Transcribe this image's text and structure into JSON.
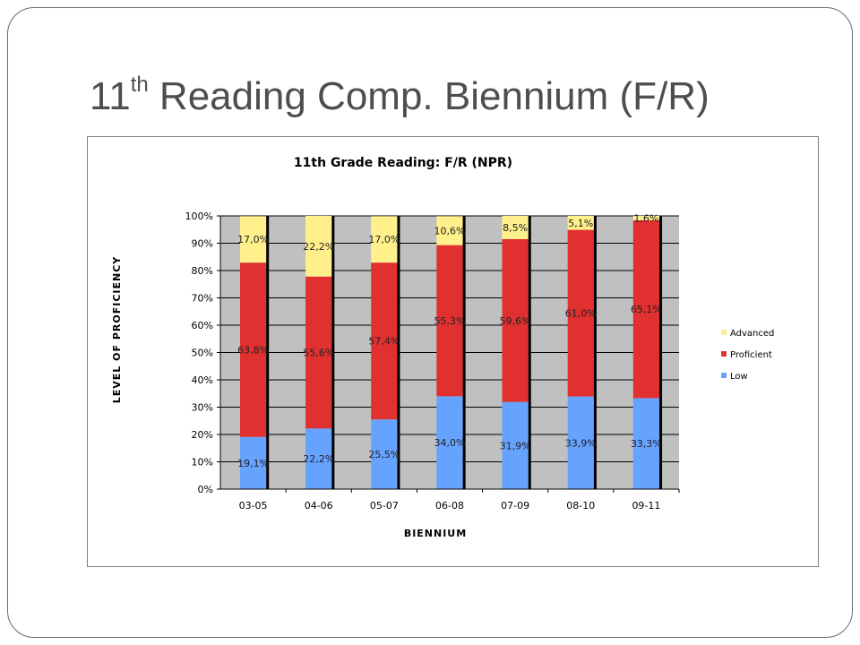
{
  "slide": {
    "title_main": "11",
    "title_sup": "th",
    "title_rest": " Reading Comp. Biennium (F/R)"
  },
  "chart_data": {
    "type": "bar",
    "stacked": true,
    "title": "11th Grade Reading:  F/R (NPR)",
    "xlabel": "BIENNIUM",
    "ylabel": "LEVEL OF PROFICIENCY",
    "categories": [
      "03-05",
      "04-06",
      "05-07",
      "06-08",
      "07-09",
      "08-10",
      "09-11"
    ],
    "ylim": [
      0,
      100
    ],
    "y_ticks": [
      "0%",
      "10%",
      "20%",
      "30%",
      "40%",
      "50%",
      "60%",
      "70%",
      "80%",
      "90%",
      "100%"
    ],
    "grid": true,
    "legend_position": "right",
    "series": [
      {
        "name": "Low",
        "color": "#66a3ff",
        "values": [
          19.1,
          22.2,
          25.5,
          34.0,
          31.9,
          33.9,
          33.3
        ],
        "labels": [
          "19,1%",
          "22,2%",
          "25,5%",
          "34,0%",
          "31,9%",
          "33,9%",
          "33,3%"
        ]
      },
      {
        "name": "Proficient",
        "color": "#e03030",
        "values": [
          63.8,
          55.6,
          57.4,
          55.3,
          59.6,
          61.0,
          65.1
        ],
        "labels": [
          "63,8%",
          "55,6%",
          "57,4%",
          "55,3%",
          "59,6%",
          "61,0%",
          "65,1%"
        ]
      },
      {
        "name": "Advanced",
        "color": "#fff08c",
        "values": [
          17.0,
          22.2,
          17.0,
          10.6,
          8.5,
          5.1,
          1.6
        ],
        "labels": [
          "17,0%",
          "22,2%",
          "17,0%",
          "10,6%",
          "8,5%",
          "5,1%",
          "1,6%"
        ]
      }
    ],
    "legend_order": [
      "Advanced",
      "Proficient",
      "Low"
    ],
    "plot_background": "#c0c0c0"
  }
}
